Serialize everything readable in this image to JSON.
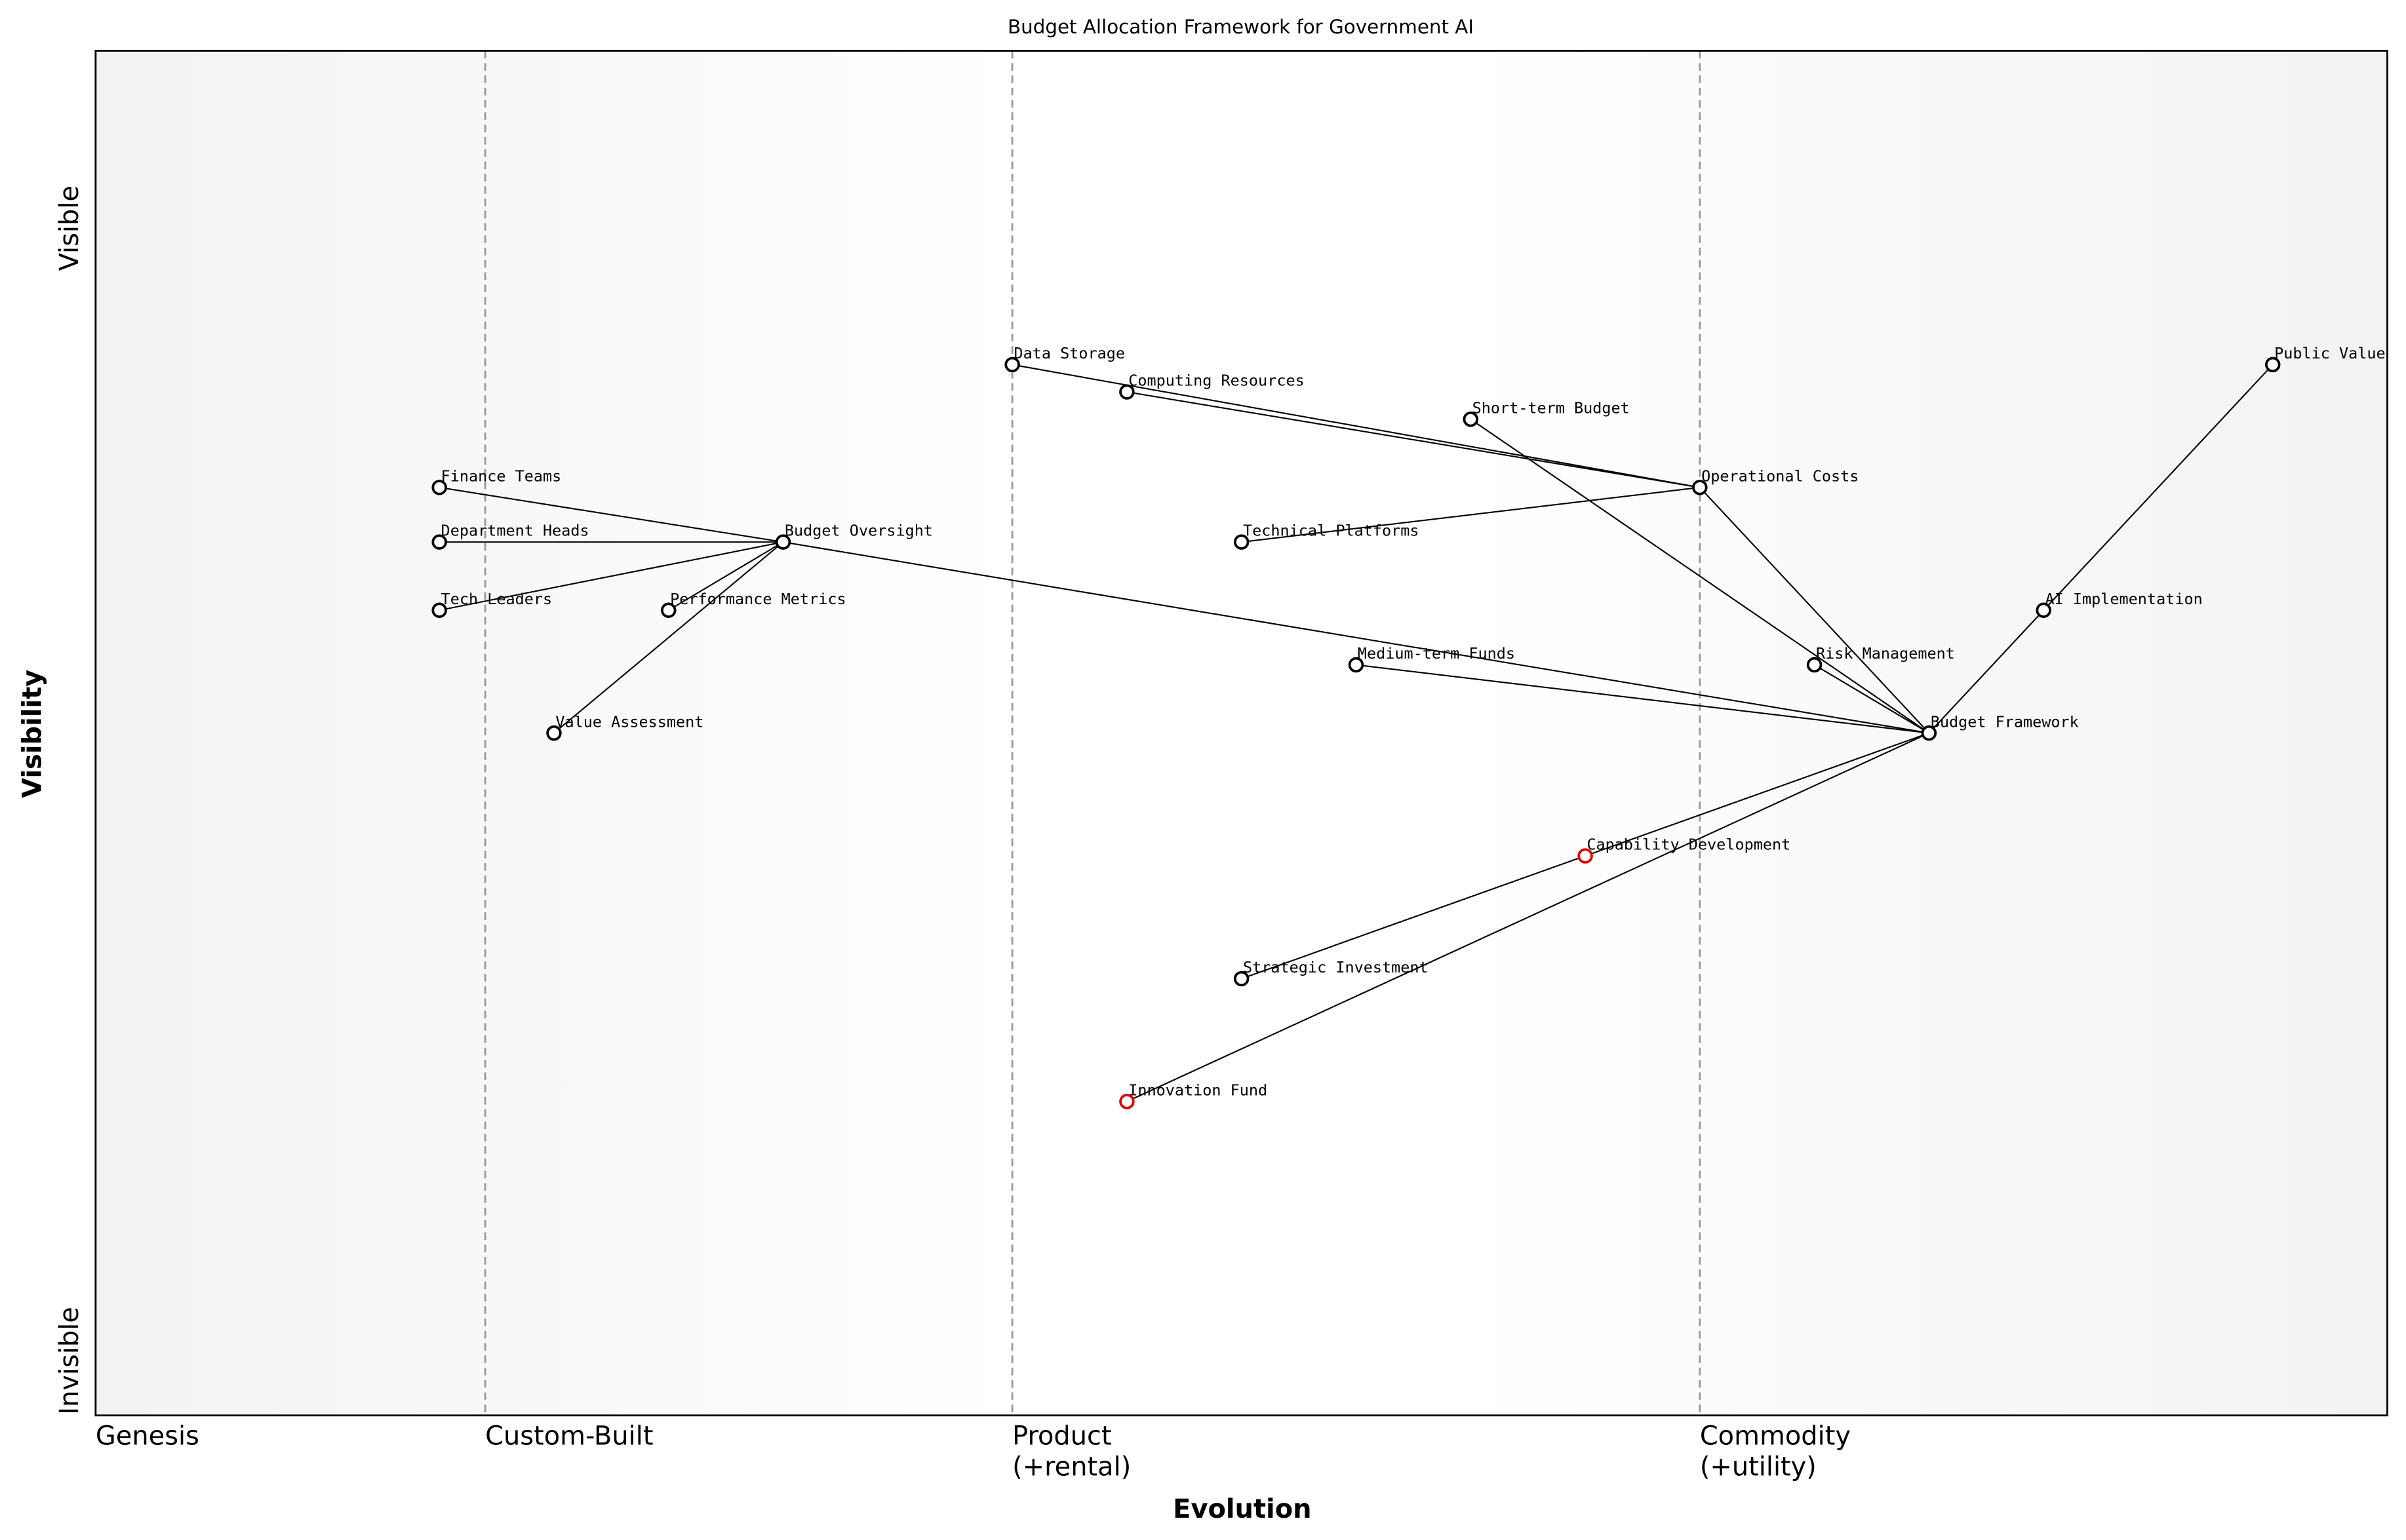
{
  "chart_data": {
    "type": "wardley",
    "title": "Budget Allocation Framework for Government AI",
    "x_label": "Evolution",
    "y_label": "Visibility",
    "xlim": [
      0,
      1
    ],
    "ylim": [
      0,
      1
    ],
    "xticks": [
      {
        "value": 0,
        "label": "Genesis"
      },
      {
        "value": 0.17,
        "label": "Custom-Built"
      },
      {
        "value": 0.4,
        "label": "Product\n(+rental)"
      },
      {
        "value": 0.7,
        "label": "Commodity\n(+utility)"
      }
    ],
    "yticks": [
      {
        "value": 0.87,
        "label": "Visible"
      },
      {
        "value": 0.04,
        "label": "Invisible"
      }
    ],
    "nodes": [
      {
        "label": "Data Storage",
        "x": 0.4,
        "y": 0.77,
        "color": "#000000"
      },
      {
        "label": "Computing Resources",
        "x": 0.45,
        "y": 0.75,
        "color": "#000000"
      },
      {
        "label": "Short-term Budget",
        "x": 0.6,
        "y": 0.73,
        "color": "#000000"
      },
      {
        "label": "Public Value",
        "x": 0.95,
        "y": 0.77,
        "color": "#000000"
      },
      {
        "label": "Operational Costs",
        "x": 0.7,
        "y": 0.68,
        "color": "#000000"
      },
      {
        "label": "Finance Teams",
        "x": 0.15,
        "y": 0.68,
        "color": "#000000"
      },
      {
        "label": "Department Heads",
        "x": 0.15,
        "y": 0.64,
        "color": "#000000"
      },
      {
        "label": "Budget Oversight",
        "x": 0.3,
        "y": 0.64,
        "color": "#000000"
      },
      {
        "label": "Technical Platforms",
        "x": 0.5,
        "y": 0.64,
        "color": "#000000"
      },
      {
        "label": "Tech Leaders",
        "x": 0.15,
        "y": 0.59,
        "color": "#000000"
      },
      {
        "label": "Performance Metrics",
        "x": 0.25,
        "y": 0.59,
        "color": "#000000"
      },
      {
        "label": "AI Implementation",
        "x": 0.85,
        "y": 0.59,
        "color": "#000000"
      },
      {
        "label": "Medium-term Funds",
        "x": 0.55,
        "y": 0.55,
        "color": "#000000"
      },
      {
        "label": "Risk Management",
        "x": 0.75,
        "y": 0.55,
        "color": "#000000"
      },
      {
        "label": "Value Assessment",
        "x": 0.2,
        "y": 0.5,
        "color": "#000000"
      },
      {
        "label": "Budget Framework",
        "x": 0.8,
        "y": 0.5,
        "color": "#000000"
      },
      {
        "label": "Capability Development",
        "x": 0.65,
        "y": 0.41,
        "color": "#e00000"
      },
      {
        "label": "Strategic Investment",
        "x": 0.5,
        "y": 0.32,
        "color": "#000000"
      },
      {
        "label": "Innovation Fund",
        "x": 0.45,
        "y": 0.23,
        "color": "#e00000"
      }
    ],
    "links": [
      [
        5,
        7
      ],
      [
        6,
        7
      ],
      [
        9,
        7
      ],
      [
        10,
        7
      ],
      [
        14,
        7
      ],
      [
        7,
        15
      ],
      [
        0,
        4
      ],
      [
        1,
        4
      ],
      [
        8,
        4
      ],
      [
        4,
        15
      ],
      [
        2,
        15
      ],
      [
        12,
        15
      ],
      [
        13,
        15
      ],
      [
        11,
        15
      ],
      [
        3,
        11
      ],
      [
        16,
        15
      ],
      [
        17,
        16
      ],
      [
        18,
        15
      ]
    ]
  }
}
